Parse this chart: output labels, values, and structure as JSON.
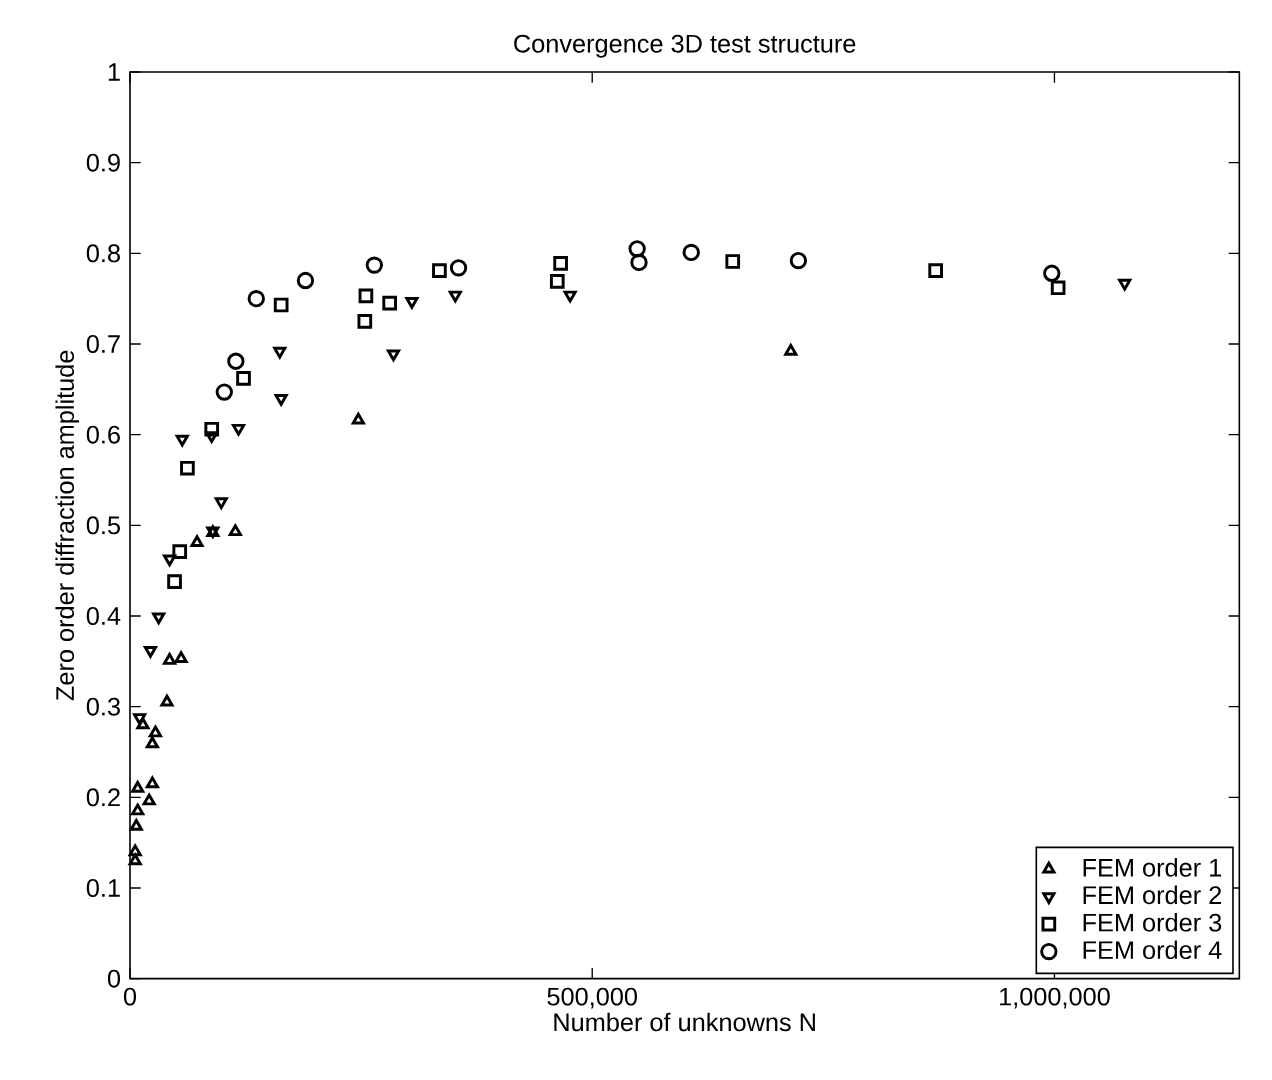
{
  "chart_data": {
    "type": "scatter",
    "title": "Convergence 3D test structure",
    "xlabel": "Number of unknowns N",
    "ylabel": "Zero order diffraction amplitude",
    "xlim": [
      0,
      1200000
    ],
    "ylim": [
      0,
      1
    ],
    "xticks": [
      0,
      {
        "value": 500000,
        "label": "500,000"
      },
      {
        "value": 1000000,
        "label": "1,000,000"
      }
    ],
    "yticks": [
      0,
      0.1,
      0.2,
      0.3,
      0.4,
      0.5,
      0.6,
      0.7,
      0.8,
      0.9,
      1
    ],
    "grid": false,
    "legend": "bottom right",
    "series": [
      {
        "name": "FEM order 1",
        "color": "#000000",
        "marker": "triangle",
        "x": [
          5600,
          5600,
          6800,
          8300,
          8300,
          14000,
          20700,
          24200,
          24200,
          27500,
          40000,
          42800,
          55300,
          72500,
          89600,
          113900,
          247000,
          714800
        ],
        "values": [
          0.13,
          0.14,
          0.168,
          0.185,
          0.21,
          0.28,
          0.196,
          0.215,
          0.259,
          0.271,
          0.305,
          0.351,
          0.353,
          0.481,
          0.492,
          0.493,
          0.616,
          0.692
        ]
      },
      {
        "name": "FEM order 2",
        "color": "#000000",
        "marker": "triangle-down",
        "x": [
          10400,
          22100,
          31000,
          42800,
          56500,
          88400,
          89600,
          98700,
          117400,
          162000,
          163500,
          285000,
          304900,
          351900,
          476100,
          1076000
        ],
        "values": [
          0.288,
          0.362,
          0.399,
          0.463,
          0.595,
          0.599,
          0.494,
          0.526,
          0.607,
          0.692,
          0.64,
          0.689,
          0.747,
          0.754,
          0.754,
          0.767
        ]
      },
      {
        "name": "FEM order 3",
        "color": "#000000",
        "marker": "square",
        "x": [
          48200,
          53800,
          62100,
          88400,
          122800,
          163500,
          254000,
          255200,
          280900,
          334700,
          462200,
          465800,
          652000,
          871500,
          1004000
        ],
        "values": [
          0.438,
          0.471,
          0.563,
          0.606,
          0.662,
          0.743,
          0.725,
          0.753,
          0.745,
          0.781,
          0.769,
          0.789,
          0.791,
          0.781,
          0.762
        ]
      },
      {
        "name": "FEM order 4",
        "color": "#000000",
        "marker": "circle",
        "x": [
          102000,
          114500,
          136600,
          189800,
          264300,
          355400,
          548600,
          550600,
          607100,
          723000,
          997100
        ],
        "values": [
          0.647,
          0.681,
          0.75,
          0.77,
          0.787,
          0.784,
          0.805,
          0.79,
          0.801,
          0.792,
          0.778
        ]
      }
    ]
  }
}
